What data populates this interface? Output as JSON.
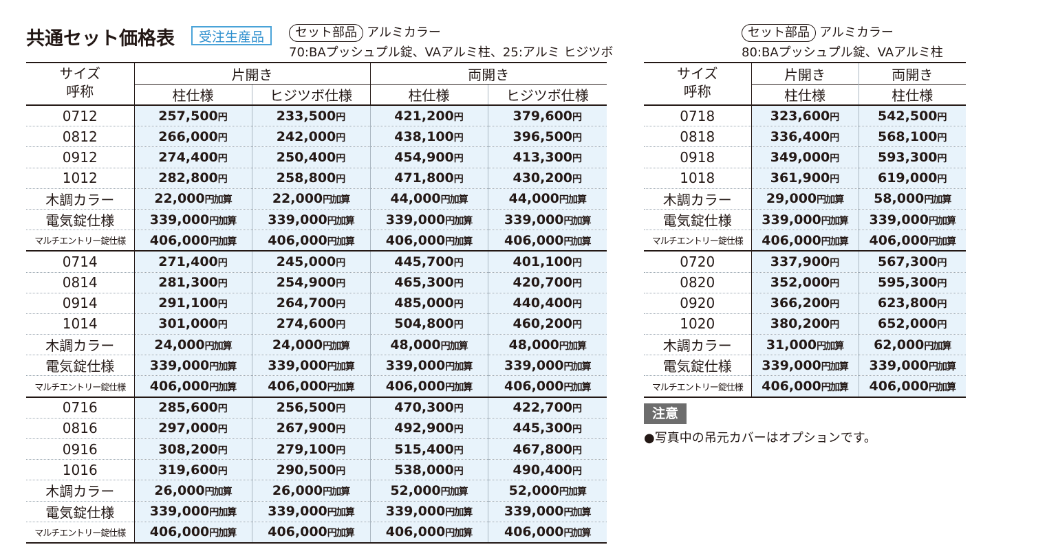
{
  "title": "共通セット価格表",
  "badge": "受注生産品",
  "yen": "円",
  "add_suffix": "円加算",
  "left": {
    "set_label": "セット部品",
    "color": "アルミカラー",
    "parts": "70:BAプッシュプル錠、VAアルミ柱、25:アルミ ヒジツボ",
    "header": {
      "size_l1": "サイズ",
      "size_l2": "呼称",
      "kata": "片開き",
      "ryo": "両開き",
      "hashira": "柱仕様",
      "hijitsubo": "ヒジツボ仕様"
    },
    "groups": [
      {
        "rows": [
          {
            "label": "0712",
            "values": [
              "257,500",
              "233,500",
              "421,200",
              "379,600"
            ]
          },
          {
            "label": "0812",
            "values": [
              "266,000",
              "242,000",
              "438,100",
              "396,500"
            ]
          },
          {
            "label": "0912",
            "values": [
              "274,400",
              "250,400",
              "454,900",
              "413,300"
            ]
          },
          {
            "label": "1012",
            "values": [
              "282,800",
              "258,800",
              "471,800",
              "430,200"
            ]
          }
        ],
        "extras": [
          {
            "label": "木調カラー",
            "values": [
              "22,000",
              "22,000",
              "44,000",
              "44,000"
            ]
          },
          {
            "label": "電気錠仕様",
            "values": [
              "339,000",
              "339,000",
              "339,000",
              "339,000"
            ]
          },
          {
            "label": "マルチエントリー錠仕様",
            "values": [
              "406,000",
              "406,000",
              "406,000",
              "406,000"
            ]
          }
        ]
      },
      {
        "rows": [
          {
            "label": "0714",
            "values": [
              "271,400",
              "245,000",
              "445,700",
              "401,100"
            ]
          },
          {
            "label": "0814",
            "values": [
              "281,300",
              "254,900",
              "465,300",
              "420,700"
            ]
          },
          {
            "label": "0914",
            "values": [
              "291,100",
              "264,700",
              "485,000",
              "440,400"
            ]
          },
          {
            "label": "1014",
            "values": [
              "301,000",
              "274,600",
              "504,800",
              "460,200"
            ]
          }
        ],
        "extras": [
          {
            "label": "木調カラー",
            "values": [
              "24,000",
              "24,000",
              "48,000",
              "48,000"
            ]
          },
          {
            "label": "電気錠仕様",
            "values": [
              "339,000",
              "339,000",
              "339,000",
              "339,000"
            ]
          },
          {
            "label": "マルチエントリー錠仕様",
            "values": [
              "406,000",
              "406,000",
              "406,000",
              "406,000"
            ]
          }
        ]
      },
      {
        "rows": [
          {
            "label": "0716",
            "values": [
              "285,600",
              "256,500",
              "470,300",
              "422,700"
            ]
          },
          {
            "label": "0816",
            "values": [
              "297,000",
              "267,900",
              "492,900",
              "445,300"
            ]
          },
          {
            "label": "0916",
            "values": [
              "308,200",
              "279,100",
              "515,400",
              "467,800"
            ]
          },
          {
            "label": "1016",
            "values": [
              "319,600",
              "290,500",
              "538,000",
              "490,400"
            ]
          }
        ],
        "extras": [
          {
            "label": "木調カラー",
            "values": [
              "26,000",
              "26,000",
              "52,000",
              "52,000"
            ]
          },
          {
            "label": "電気錠仕様",
            "values": [
              "339,000",
              "339,000",
              "339,000",
              "339,000"
            ]
          },
          {
            "label": "マルチエントリー錠仕様",
            "values": [
              "406,000",
              "406,000",
              "406,000",
              "406,000"
            ]
          }
        ]
      }
    ]
  },
  "right": {
    "set_label": "セット部品",
    "color": "アルミカラー",
    "parts": "80:BAプッシュプル錠、VAアルミ柱",
    "header": {
      "size_l1": "サイズ",
      "size_l2": "呼称",
      "kata": "片開き",
      "ryo": "両開き",
      "hashira": "柱仕様",
      "hashira2": "柱仕様"
    },
    "groups": [
      {
        "rows": [
          {
            "label": "0718",
            "values": [
              "323,600",
              "542,500"
            ]
          },
          {
            "label": "0818",
            "values": [
              "336,400",
              "568,100"
            ]
          },
          {
            "label": "0918",
            "values": [
              "349,000",
              "593,300"
            ]
          },
          {
            "label": "1018",
            "values": [
              "361,900",
              "619,000"
            ]
          }
        ],
        "extras": [
          {
            "label": "木調カラー",
            "values": [
              "29,000",
              "58,000"
            ]
          },
          {
            "label": "電気錠仕様",
            "values": [
              "339,000",
              "339,000"
            ]
          },
          {
            "label": "マルチエントリー錠仕様",
            "values": [
              "406,000",
              "406,000"
            ]
          }
        ]
      },
      {
        "rows": [
          {
            "label": "0720",
            "values": [
              "337,900",
              "567,300"
            ]
          },
          {
            "label": "0820",
            "values": [
              "352,000",
              "595,300"
            ]
          },
          {
            "label": "0920",
            "values": [
              "366,200",
              "623,800"
            ]
          },
          {
            "label": "1020",
            "values": [
              "380,200",
              "652,000"
            ]
          }
        ],
        "extras": [
          {
            "label": "木調カラー",
            "values": [
              "31,000",
              "62,000"
            ]
          },
          {
            "label": "電気錠仕様",
            "values": [
              "339,000",
              "339,000"
            ]
          },
          {
            "label": "マルチエントリー錠仕様",
            "values": [
              "406,000",
              "406,000"
            ]
          }
        ]
      }
    ]
  },
  "notice": {
    "label": "注意",
    "text": "●写真中の吊元カバーはオプションです。"
  }
}
